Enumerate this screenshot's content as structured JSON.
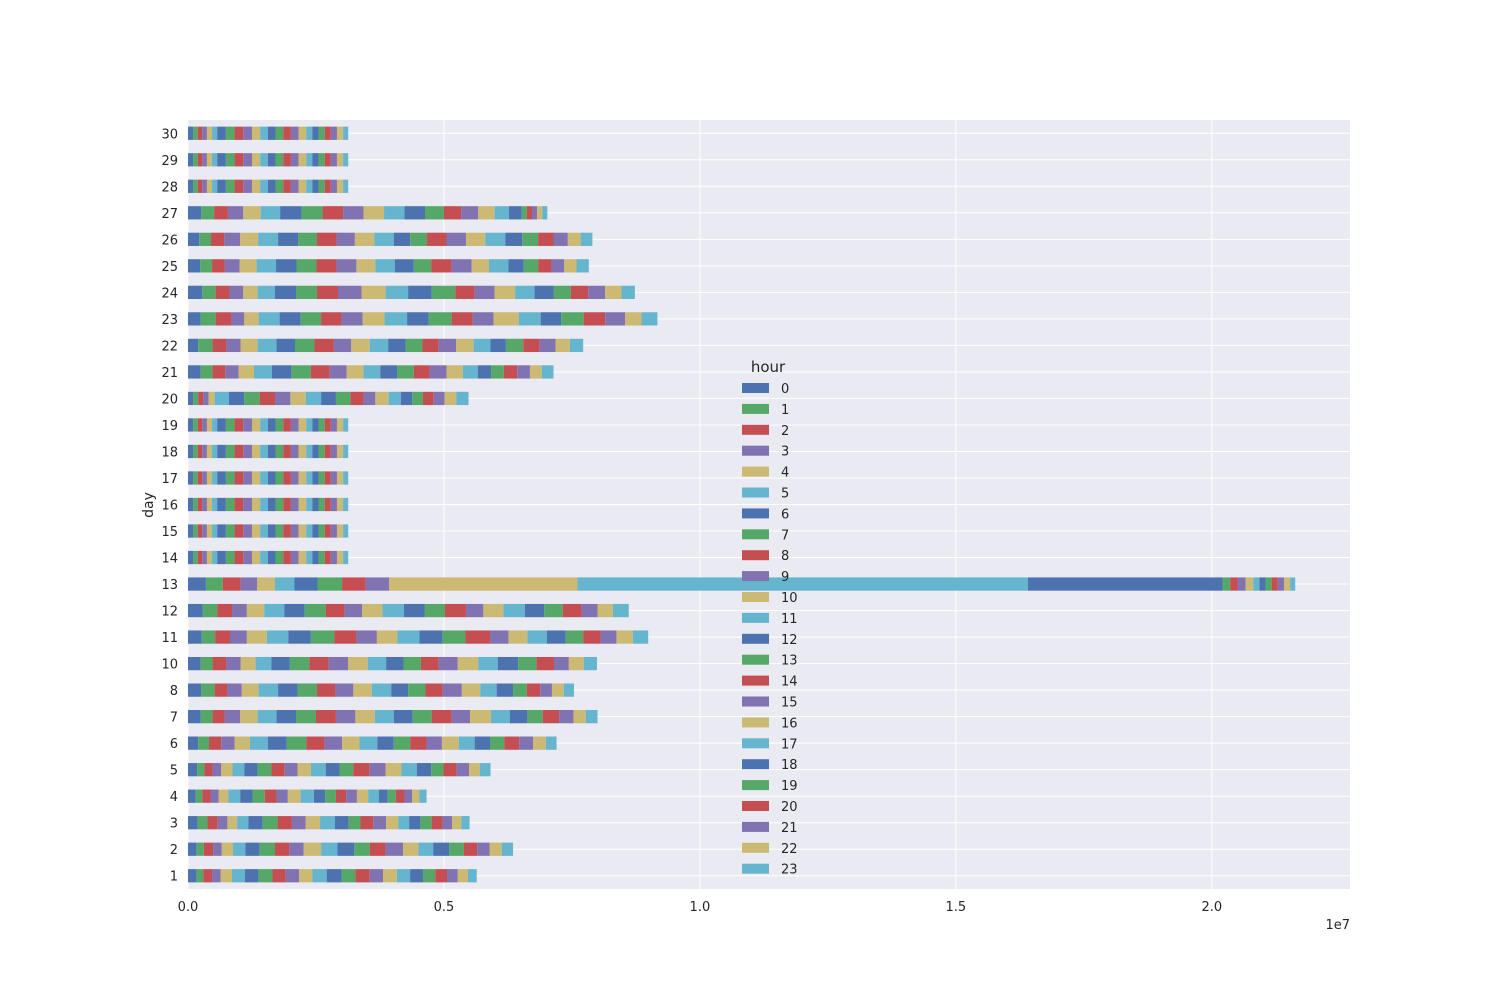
{
  "chart_data": {
    "type": "bar",
    "orientation": "horizontal",
    "stacked": true,
    "ylabel": "day",
    "xlabel": "",
    "x_scale_label": "1e7",
    "xlim": [
      0,
      22700000
    ],
    "xticks": [
      0,
      5000000,
      10000000,
      15000000,
      20000000
    ],
    "xtick_labels": [
      "0.0",
      "0.5",
      "1.0",
      "1.5",
      "2.0"
    ],
    "grid": true,
    "legend": {
      "title": "hour",
      "placement": "center"
    },
    "palette": [
      "#4C72B0",
      "#55A868",
      "#C44E52",
      "#8172B2",
      "#CCB974",
      "#64B5CD"
    ],
    "categories": [
      "1",
      "2",
      "3",
      "4",
      "5",
      "6",
      "7",
      "8",
      "10",
      "11",
      "12",
      "13",
      "14",
      "15",
      "16",
      "17",
      "18",
      "19",
      "20",
      "21",
      "22",
      "23",
      "24",
      "25",
      "26",
      "27",
      "28",
      "29",
      "30"
    ],
    "series": [
      {
        "name": "0",
        "values": [
          170000,
          170000,
          190000,
          150000,
          180000,
          200000,
          250000,
          260000,
          250000,
          270000,
          290000,
          350000,
          100000,
          100000,
          100000,
          100000,
          100000,
          100000,
          100000,
          250000,
          200000,
          250000,
          280000,
          240000,
          220000,
          260000,
          100000,
          100000,
          100000
        ]
      },
      {
        "name": "1",
        "values": [
          130000,
          140000,
          190000,
          130000,
          140000,
          210000,
          230000,
          260000,
          230000,
          260000,
          280000,
          330000,
          90000,
          90000,
          90000,
          90000,
          90000,
          90000,
          100000,
          230000,
          280000,
          290000,
          260000,
          230000,
          230000,
          250000,
          90000,
          90000,
          90000
        ]
      },
      {
        "name": "2",
        "values": [
          170000,
          180000,
          200000,
          160000,
          160000,
          240000,
          240000,
          250000,
          270000,
          290000,
          290000,
          350000,
          90000,
          90000,
          90000,
          90000,
          90000,
          90000,
          100000,
          250000,
          270000,
          300000,
          270000,
          250000,
          260000,
          270000,
          90000,
          90000,
          90000
        ]
      },
      {
        "name": "3",
        "values": [
          170000,
          170000,
          190000,
          160000,
          170000,
          260000,
          300000,
          280000,
          280000,
          330000,
          290000,
          320000,
          90000,
          90000,
          90000,
          90000,
          90000,
          90000,
          100000,
          260000,
          280000,
          260000,
          270000,
          290000,
          310000,
          300000,
          90000,
          90000,
          90000
        ]
      },
      {
        "name": "4",
        "values": [
          220000,
          220000,
          190000,
          190000,
          220000,
          300000,
          340000,
          330000,
          290000,
          390000,
          340000,
          350000,
          100000,
          100000,
          100000,
          100000,
          100000,
          100000,
          120000,
          300000,
          330000,
          280000,
          280000,
          330000,
          350000,
          340000,
          100000,
          100000,
          100000
        ]
      },
      {
        "name": "5",
        "values": [
          250000,
          240000,
          220000,
          230000,
          230000,
          350000,
          370000,
          380000,
          310000,
          420000,
          390000,
          380000,
          100000,
          100000,
          100000,
          100000,
          100000,
          100000,
          280000,
          350000,
          370000,
          410000,
          340000,
          380000,
          390000,
          380000,
          100000,
          100000,
          100000
        ]
      },
      {
        "name": "6",
        "values": [
          270000,
          280000,
          280000,
          240000,
          260000,
          370000,
          380000,
          380000,
          360000,
          440000,
          400000,
          450000,
          170000,
          170000,
          170000,
          170000,
          170000,
          170000,
          300000,
          380000,
          360000,
          410000,
          410000,
          400000,
          390000,
          420000,
          170000,
          170000,
          170000
        ]
      },
      {
        "name": "7",
        "values": [
          270000,
          300000,
          290000,
          240000,
          270000,
          380000,
          390000,
          380000,
          380000,
          460000,
          410000,
          480000,
          170000,
          170000,
          170000,
          170000,
          170000,
          170000,
          300000,
          380000,
          380000,
          400000,
          410000,
          390000,
          370000,
          410000,
          170000,
          170000,
          170000
        ]
      },
      {
        "name": "8",
        "values": [
          260000,
          280000,
          280000,
          230000,
          260000,
          360000,
          390000,
          360000,
          380000,
          430000,
          370000,
          460000,
          170000,
          170000,
          170000,
          170000,
          170000,
          170000,
          300000,
          370000,
          380000,
          400000,
          410000,
          390000,
          380000,
          400000,
          170000,
          170000,
          170000
        ]
      },
      {
        "name": "9",
        "values": [
          260000,
          280000,
          270000,
          220000,
          250000,
          340000,
          380000,
          350000,
          380000,
          400000,
          340000,
          460000,
          170000,
          170000,
          170000,
          170000,
          170000,
          170000,
          300000,
          330000,
          340000,
          410000,
          460000,
          390000,
          360000,
          400000,
          170000,
          170000,
          170000
        ]
      },
      {
        "name": "10",
        "values": [
          260000,
          340000,
          280000,
          250000,
          260000,
          340000,
          380000,
          360000,
          380000,
          400000,
          400000,
          3680000,
          160000,
          160000,
          160000,
          160000,
          160000,
          160000,
          300000,
          330000,
          360000,
          430000,
          470000,
          370000,
          380000,
          400000,
          160000,
          160000,
          160000
        ]
      },
      {
        "name": "11",
        "values": [
          280000,
          320000,
          290000,
          260000,
          290000,
          350000,
          370000,
          380000,
          360000,
          430000,
          420000,
          8800000,
          150000,
          150000,
          150000,
          150000,
          150000,
          150000,
          300000,
          330000,
          360000,
          440000,
          440000,
          380000,
          380000,
          400000,
          150000,
          150000,
          150000
        ]
      },
      {
        "name": "12",
        "values": [
          290000,
          330000,
          270000,
          220000,
          270000,
          320000,
          370000,
          330000,
          340000,
          450000,
          400000,
          3800000,
          150000,
          150000,
          150000,
          150000,
          150000,
          150000,
          290000,
          330000,
          340000,
          420000,
          460000,
          370000,
          320000,
          400000,
          150000,
          150000,
          150000
        ]
      },
      {
        "name": "13",
        "values": [
          270000,
          300000,
          230000,
          210000,
          270000,
          320000,
          370000,
          340000,
          340000,
          450000,
          400000,
          150000,
          150000,
          150000,
          150000,
          150000,
          150000,
          150000,
          280000,
          320000,
          330000,
          450000,
          460000,
          340000,
          330000,
          370000,
          150000,
          150000,
          150000
        ]
      },
      {
        "name": "14",
        "values": [
          280000,
          310000,
          250000,
          200000,
          320000,
          320000,
          390000,
          330000,
          350000,
          480000,
          410000,
          150000,
          150000,
          150000,
          150000,
          150000,
          150000,
          150000,
          260000,
          310000,
          320000,
          410000,
          380000,
          400000,
          380000,
          340000,
          150000,
          150000,
          150000
        ]
      },
      {
        "name": "15",
        "values": [
          260000,
          340000,
          250000,
          210000,
          310000,
          300000,
          360000,
          380000,
          370000,
          360000,
          340000,
          150000,
          150000,
          150000,
          150000,
          150000,
          150000,
          150000,
          230000,
          330000,
          340000,
          410000,
          390000,
          390000,
          380000,
          330000,
          150000,
          150000,
          150000
        ]
      },
      {
        "name": "16",
        "values": [
          270000,
          300000,
          240000,
          220000,
          310000,
          330000,
          410000,
          360000,
          400000,
          370000,
          390000,
          150000,
          150000,
          150000,
          150000,
          150000,
          150000,
          150000,
          260000,
          320000,
          340000,
          490000,
          400000,
          340000,
          380000,
          320000,
          150000,
          150000,
          150000
        ]
      },
      {
        "name": "17",
        "values": [
          260000,
          290000,
          210000,
          210000,
          300000,
          310000,
          370000,
          320000,
          380000,
          380000,
          420000,
          120000,
          120000,
          120000,
          120000,
          120000,
          120000,
          120000,
          240000,
          290000,
          330000,
          430000,
          380000,
          380000,
          390000,
          280000,
          120000,
          120000,
          120000
        ]
      },
      {
        "name": "18",
        "values": [
          250000,
          310000,
          220000,
          170000,
          280000,
          300000,
          340000,
          320000,
          400000,
          370000,
          380000,
          120000,
          120000,
          120000,
          120000,
          120000,
          120000,
          120000,
          220000,
          260000,
          300000,
          400000,
          370000,
          300000,
          330000,
          250000,
          120000,
          120000,
          120000
        ]
      },
      {
        "name": "19",
        "values": [
          240000,
          290000,
          220000,
          160000,
          240000,
          280000,
          300000,
          270000,
          360000,
          340000,
          360000,
          120000,
          120000,
          120000,
          120000,
          120000,
          120000,
          120000,
          210000,
          250000,
          340000,
          440000,
          340000,
          280000,
          310000,
          100000,
          120000,
          120000,
          120000
        ]
      },
      {
        "name": "20",
        "values": [
          230000,
          260000,
          210000,
          170000,
          260000,
          290000,
          320000,
          260000,
          340000,
          340000,
          370000,
          120000,
          120000,
          120000,
          120000,
          120000,
          120000,
          120000,
          210000,
          260000,
          320000,
          420000,
          340000,
          260000,
          300000,
          100000,
          120000,
          120000,
          120000
        ]
      },
      {
        "name": "21",
        "values": [
          210000,
          240000,
          190000,
          150000,
          240000,
          270000,
          280000,
          230000,
          290000,
          310000,
          310000,
          120000,
          120000,
          120000,
          120000,
          120000,
          120000,
          120000,
          210000,
          250000,
          310000,
          390000,
          330000,
          250000,
          280000,
          100000,
          120000,
          120000,
          120000
        ]
      },
      {
        "name": "22",
        "values": [
          200000,
          240000,
          180000,
          140000,
          210000,
          250000,
          240000,
          230000,
          290000,
          320000,
          300000,
          120000,
          120000,
          120000,
          120000,
          120000,
          120000,
          120000,
          230000,
          230000,
          280000,
          320000,
          320000,
          240000,
          250000,
          100000,
          120000,
          120000,
          120000
        ]
      },
      {
        "name": "23",
        "values": [
          170000,
          220000,
          160000,
          140000,
          210000,
          210000,
          230000,
          200000,
          260000,
          300000,
          310000,
          100000,
          100000,
          100000,
          100000,
          100000,
          100000,
          100000,
          240000,
          230000,
          260000,
          310000,
          260000,
          240000,
          230000,
          100000,
          100000,
          100000,
          100000
        ]
      }
    ]
  }
}
